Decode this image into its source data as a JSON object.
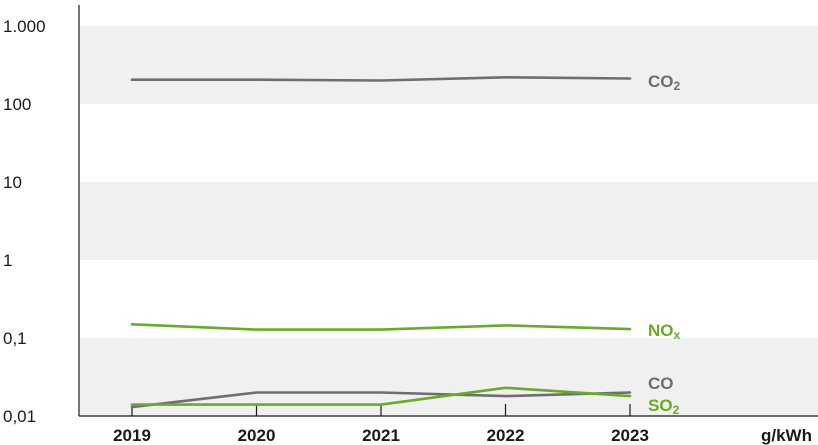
{
  "chart_data": {
    "type": "line",
    "y_scale": "log",
    "ylim": [
      0.01,
      1000
    ],
    "y_ticks": [
      {
        "value": 1000,
        "label": "1.000"
      },
      {
        "value": 100,
        "label": "100"
      },
      {
        "value": 10,
        "label": "10"
      },
      {
        "value": 1,
        "label": "1"
      },
      {
        "value": 0.1,
        "label": "0,1"
      },
      {
        "value": 0.01,
        "label": "0,01"
      }
    ],
    "x": [
      "2019",
      "2020",
      "2021",
      "2022",
      "2023"
    ],
    "unit_label": "g/kWh",
    "banding": "alternating light grey horizontal bands",
    "series": [
      {
        "id": "co2",
        "base": "CO",
        "sub": "2",
        "color": "#6e6e6e",
        "values": [
          205,
          205,
          200,
          220,
          212
        ]
      },
      {
        "id": "nox",
        "base": "NO",
        "sub": "x",
        "color": "#6aaa2a",
        "values": [
          0.15,
          0.128,
          0.128,
          0.145,
          0.13
        ]
      },
      {
        "id": "co",
        "base": "CO",
        "sub": "",
        "color": "#6e6e6e",
        "values": [
          0.013,
          0.02,
          0.02,
          0.018,
          0.02
        ]
      },
      {
        "id": "so2",
        "base": "SO",
        "sub": "2",
        "color": "#6aaa2a",
        "values": [
          0.014,
          0.014,
          0.014,
          0.023,
          0.018
        ]
      }
    ]
  }
}
